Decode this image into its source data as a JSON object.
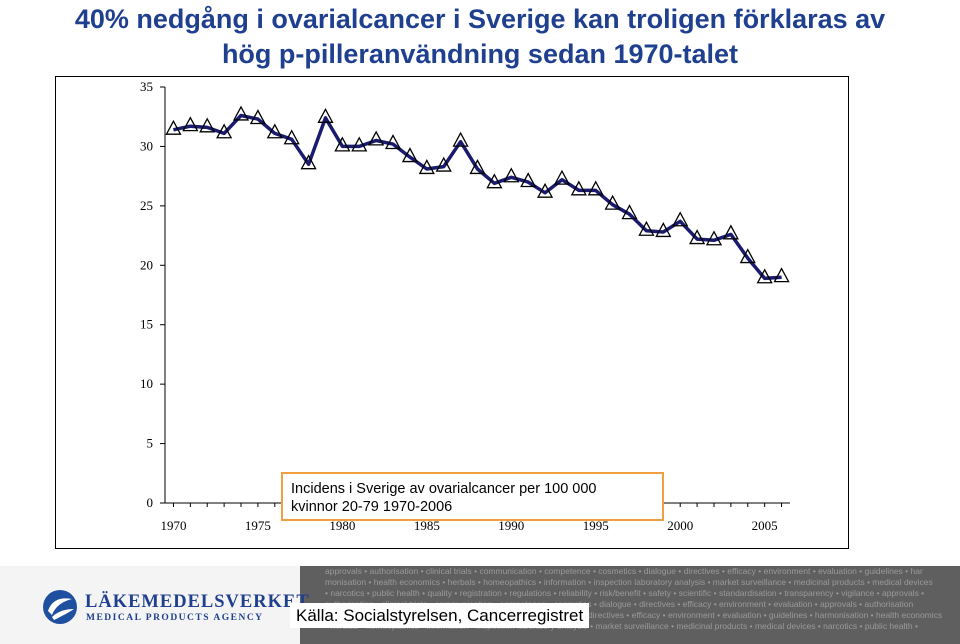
{
  "title": {
    "line1": "40% nedgång i ovarialcancer i Sverige  kan troligen förklaras av",
    "line2": "hög p-pilleranvändning sedan 1970-talet"
  },
  "legend": {
    "line1": "Incidens  i Sverige av ovarialcancer per 100 000",
    "line2": "kvinnor 20-79 1970-2006"
  },
  "footer": {
    "logo_name": "LÄKEMEDELSVERKET",
    "logo_sub": "MEDICAL PRODUCTS AGENCY",
    "source": "Källa: Socialstyrelsen, Cancerregistret",
    "keywords": [
      "approvals • authorisation • clinical trials • communication • competence • cosmetics • dialogue • directives • efficacy • environment • evaluation • guidelines • har",
      "monisation • health economics • herbals • homeopathics • information • inspection laboratory analysis • market surveillance • medicinal products • medical devices",
      "• narcotics • public health • quality • registration • regulations • reliability • risk/benefit • safety • scientific • standardisation • transparency • vigilance • approvals •",
      "authorisation • clinical trials • communication • competence • cosmetics • dialogue • directives • efficacy • environment • evaluation • approvals • authorisation",
      "• clinical trials • communication • competence • cosmetics • dialogue • directives • efficacy • environment • evaluation • guidelines • harmonisation • health economics",
      "• herbals • homeopathics • information • inspection laboratory analysis • market surveillance • medicinal products • medical devices • narcotics • public health •"
    ]
  },
  "chart_data": {
    "type": "line",
    "title": "",
    "xlabel": "",
    "ylabel": "",
    "xlim": [
      1969.5,
      2006.5
    ],
    "ylim": [
      0,
      35
    ],
    "yticks": [
      0,
      5,
      10,
      15,
      20,
      25,
      30,
      35
    ],
    "xticks": [
      1970,
      1975,
      1980,
      1985,
      1990,
      1995,
      2000,
      2005
    ],
    "grid": false,
    "legend_position": "bottom-center",
    "series": [
      {
        "color": "#1a1a6e",
        "marker": "open-triangle",
        "x": [
          1970,
          1971,
          1972,
          1973,
          1974,
          1975,
          1976,
          1977,
          1978,
          1979,
          1980,
          1981,
          1982,
          1983,
          1984,
          1985,
          1986,
          1987,
          1988,
          1989,
          1990,
          1991,
          1992,
          1993,
          1994,
          1995,
          1996,
          1997,
          1998,
          1999,
          2000,
          2001,
          2002,
          2003,
          2004,
          2005,
          2006
        ],
        "y": [
          31.4,
          31.7,
          31.6,
          31.1,
          32.6,
          32.3,
          31.1,
          30.6,
          28.5,
          32.4,
          30.0,
          30.0,
          30.5,
          30.2,
          29.1,
          28.1,
          28.3,
          30.4,
          28.1,
          26.9,
          27.4,
          27.0,
          26.1,
          27.2,
          26.3,
          26.3,
          25.1,
          24.3,
          22.9,
          22.8,
          23.7,
          22.2,
          22.1,
          22.6,
          20.6,
          18.9,
          19.0
        ]
      }
    ]
  }
}
